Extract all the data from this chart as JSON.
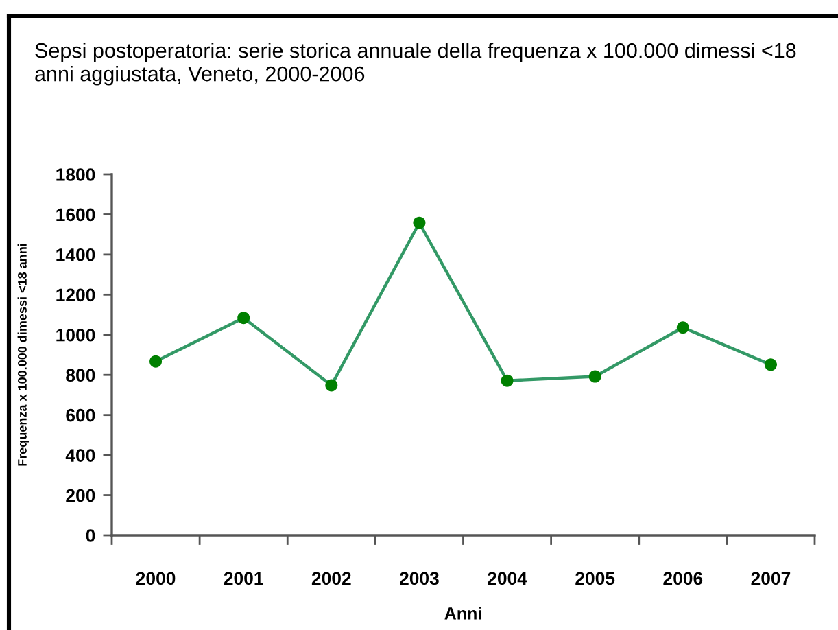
{
  "chart_data": {
    "type": "line",
    "title": "Sepsi postoperatoria: serie storica annuale della frequenza x 100.000 dimessi <18 anni aggiustata, Veneto, 2000-2006",
    "xlabel": "Anni",
    "ylabel": "Frequenza x 100.000 dimessi <18 anni",
    "categories": [
      "2000",
      "2001",
      "2002",
      "2003",
      "2004",
      "2005",
      "2006",
      "2007"
    ],
    "series": [
      {
        "color": "#339966",
        "colors": [
          "#008000",
          "#008000",
          "#008000",
          "#008000",
          "#008000",
          "#008000",
          "#008000",
          "#008000"
        ],
        "values": [
          867,
          1084,
          748,
          1558,
          771,
          792,
          1036,
          851
        ]
      }
    ],
    "ylim": [
      0,
      1800
    ],
    "yticks": [
      0,
      200,
      400,
      600,
      800,
      1000,
      1200,
      1400,
      1600,
      1800
    ],
    "marker": "circle",
    "line_style": "solid"
  }
}
